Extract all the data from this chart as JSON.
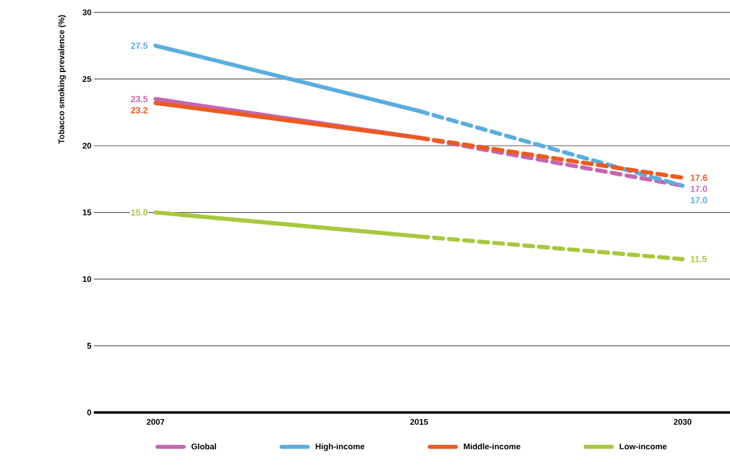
{
  "chart_data": {
    "type": "line",
    "ylabel": "Tobacco smoking prevalence (%)",
    "categories": [
      "2007",
      "2015",
      "2030"
    ],
    "ylim": [
      0,
      30
    ],
    "yticks": [
      0,
      5,
      10,
      15,
      20,
      25,
      30
    ],
    "grid": "y",
    "legend": "bottom",
    "series": [
      {
        "name": "Global",
        "color": "#c566b0",
        "line_style": "solid",
        "values": [
          23.5,
          20.6,
          null
        ],
        "value_labels": [
          "23.5",
          null,
          null
        ]
      },
      {
        "color": "#c566b0",
        "line_style": "dashed",
        "values": [
          null,
          20.6,
          17.0
        ],
        "value_labels": [
          null,
          null,
          "17.0"
        ]
      },
      {
        "name": "High-income",
        "color": "#5aade0",
        "line_style": "solid",
        "values": [
          27.5,
          22.6,
          null
        ],
        "value_labels": [
          "27.5",
          null,
          null
        ]
      },
      {
        "color": "#5aade0",
        "line_style": "dashed",
        "values": [
          null,
          22.6,
          17.0
        ],
        "value_labels": [
          null,
          null,
          "17.0"
        ]
      },
      {
        "name": "Middle-income",
        "color": "#ec5a1e",
        "line_style": "solid",
        "values": [
          23.2,
          20.6,
          null
        ],
        "value_labels": [
          "23.2",
          null,
          null
        ]
      },
      {
        "color": "#ec5a1e",
        "line_style": "dashed",
        "values": [
          null,
          20.6,
          17.6
        ],
        "value_labels": [
          null,
          null,
          "17.6"
        ]
      },
      {
        "name": "Low-income",
        "color": "#a8c83c",
        "line_style": "solid",
        "values": [
          15.0,
          13.2,
          null
        ],
        "value_labels": [
          "15.0",
          null,
          null
        ]
      },
      {
        "color": "#a8c83c",
        "line_style": "dashed",
        "values": [
          null,
          13.2,
          11.5
        ],
        "value_labels": [
          null,
          null,
          "11.5"
        ]
      }
    ]
  }
}
